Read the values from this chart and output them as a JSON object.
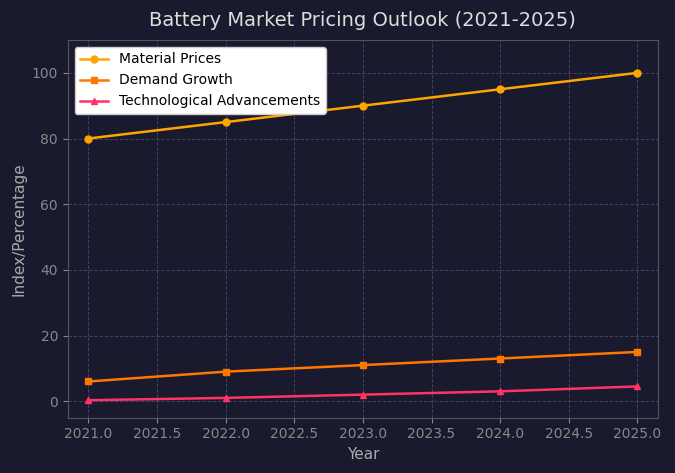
{
  "title": "Battery Market Pricing Outlook (2021-2025)",
  "xlabel": "Year",
  "ylabel": "Index/Percentage",
  "years": [
    2021,
    2022,
    2023,
    2024,
    2025
  ],
  "series": [
    {
      "label": "Material Prices",
      "values": [
        80,
        85,
        90,
        95,
        100
      ],
      "color": "#FFA500",
      "marker": "o"
    },
    {
      "label": "Demand Growth",
      "values": [
        6,
        9,
        11,
        13,
        15
      ],
      "color": "#FF7700",
      "marker": "s"
    },
    {
      "label": "Technological Advancements",
      "values": [
        0.3,
        1,
        2,
        3,
        4.5
      ],
      "color": "#FF3366",
      "marker": "^"
    }
  ],
  "ylim": [
    -5,
    110
  ],
  "xlim": [
    2020.85,
    2025.15
  ],
  "background_color": "#1a1a2e",
  "plot_bg_color": "#1a1a2e",
  "grid_color": "#444466",
  "title_color": "#dddddd",
  "tick_color": "#888888",
  "axis_label_color": "#aaaaaa",
  "spine_color": "#555555",
  "legend_bg": "#ffffff",
  "legend_edge": "#cccccc",
  "title_fontsize": 14,
  "axis_label_fontsize": 11,
  "tick_fontsize": 10,
  "legend_fontsize": 10
}
